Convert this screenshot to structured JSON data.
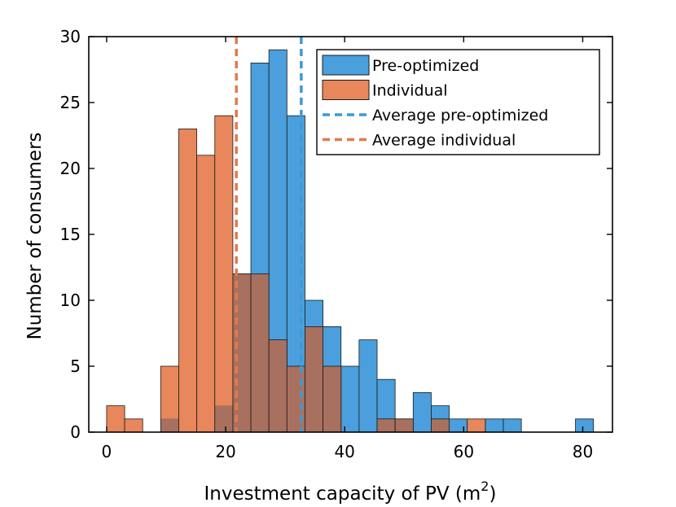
{
  "chart_data": {
    "type": "histogram",
    "title": "",
    "xlabel": "Investment capacity of PV (m",
    "xlabel_sup": "2",
    "xlabel_close": ")",
    "ylabel": "Number of consumers",
    "xlim": [
      -3,
      85
    ],
    "ylim": [
      0,
      30
    ],
    "xticks": [
      0,
      20,
      40,
      60,
      80
    ],
    "yticks": [
      0,
      5,
      10,
      15,
      20,
      25,
      30
    ],
    "grid": false,
    "legend_position": "top-right",
    "bin_width": 3.03,
    "series": [
      {
        "name": "Pre-optimized",
        "color": "#4a9fdc",
        "bins": [
          {
            "x0": 9.09,
            "count": 1
          },
          {
            "x0": 18.18,
            "count": 2
          },
          {
            "x0": 21.21,
            "count": 12
          },
          {
            "x0": 24.24,
            "count": 28
          },
          {
            "x0": 27.27,
            "count": 29
          },
          {
            "x0": 30.3,
            "count": 24
          },
          {
            "x0": 33.33,
            "count": 10
          },
          {
            "x0": 36.36,
            "count": 8
          },
          {
            "x0": 39.39,
            "count": 5
          },
          {
            "x0": 42.42,
            "count": 7
          },
          {
            "x0": 45.45,
            "count": 4
          },
          {
            "x0": 48.48,
            "count": 1
          },
          {
            "x0": 51.51,
            "count": 3
          },
          {
            "x0": 54.54,
            "count": 2
          },
          {
            "x0": 57.57,
            "count": 1
          },
          {
            "x0": 63.63,
            "count": 1
          },
          {
            "x0": 66.66,
            "count": 1
          },
          {
            "x0": 78.78,
            "count": 1
          }
        ]
      },
      {
        "name": "Individual",
        "color": "#e8875b",
        "bins": [
          {
            "x0": 0.0,
            "count": 2
          },
          {
            "x0": 3.03,
            "count": 1
          },
          {
            "x0": 9.09,
            "count": 5
          },
          {
            "x0": 12.12,
            "count": 23
          },
          {
            "x0": 15.15,
            "count": 21
          },
          {
            "x0": 18.18,
            "count": 24
          },
          {
            "x0": 21.21,
            "count": 12
          },
          {
            "x0": 24.24,
            "count": 12
          },
          {
            "x0": 27.27,
            "count": 7
          },
          {
            "x0": 30.3,
            "count": 5
          },
          {
            "x0": 33.33,
            "count": 8
          },
          {
            "x0": 36.36,
            "count": 5
          },
          {
            "x0": 45.45,
            "count": 1
          },
          {
            "x0": 48.48,
            "count": 1
          },
          {
            "x0": 54.54,
            "count": 1
          },
          {
            "x0": 60.6,
            "count": 1
          }
        ]
      }
    ],
    "reference_lines": [
      {
        "name": "Average pre-optimized",
        "x": 32.7,
        "color": "#3d9ad6",
        "style": "dashed"
      },
      {
        "name": "Average individual",
        "x": 21.8,
        "color": "#e07a4f",
        "style": "dashed"
      }
    ],
    "overlap_color": "#a8705e"
  }
}
